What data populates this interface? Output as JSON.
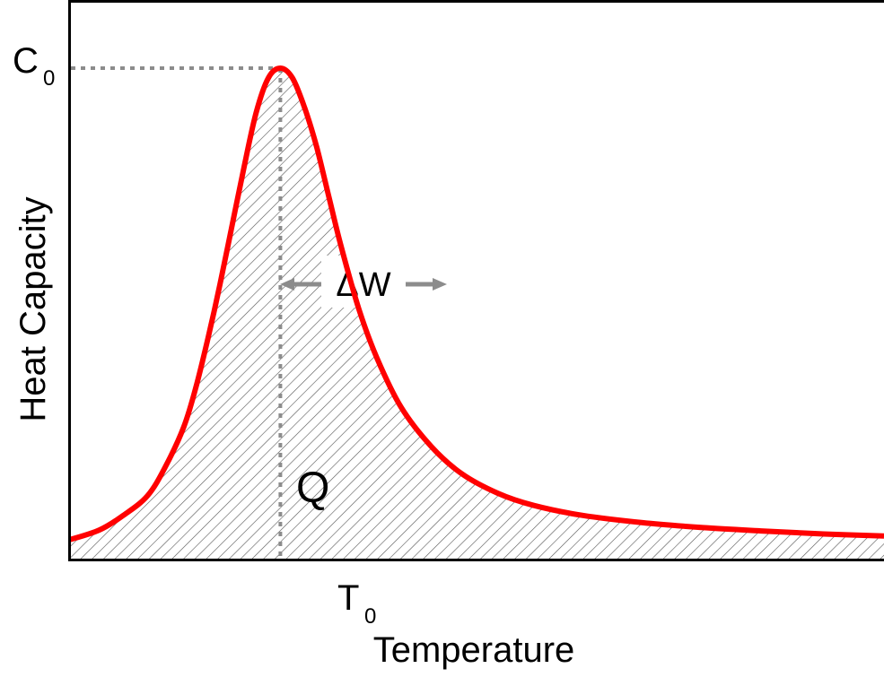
{
  "chart_data": {
    "type": "line",
    "xlabel": "Temperature",
    "ylabel": "Heat Capacity",
    "x_tick_labels": [
      {
        "main": "T",
        "sub": "0",
        "at": 0.0
      }
    ],
    "y_tick_labels": [
      {
        "main": "C",
        "sub": "0",
        "at": 1.0
      }
    ],
    "annotations": {
      "area_label": "Q",
      "width_label": "ΔW"
    },
    "series": [
      {
        "shape": "asymmetric heat-capacity peak with shaded area",
        "x": [
          -3.5,
          -3.0,
          -2.6,
          -2.2,
          -1.9,
          -1.6,
          -1.4,
          -1.2,
          -1.0,
          -0.8,
          -0.6,
          -0.4,
          -0.2,
          0.0,
          0.2,
          0.4,
          0.6,
          0.8,
          1.0,
          1.3,
          1.6,
          2.0,
          2.5,
          3.0,
          3.6,
          4.2,
          5.0,
          6.0,
          7.0,
          8.0,
          9.0,
          10.0
        ],
        "y": [
          0.04,
          0.06,
          0.09,
          0.13,
          0.19,
          0.27,
          0.35,
          0.45,
          0.56,
          0.68,
          0.8,
          0.91,
          0.98,
          1.0,
          0.98,
          0.92,
          0.84,
          0.74,
          0.64,
          0.51,
          0.41,
          0.31,
          0.23,
          0.175,
          0.135,
          0.11,
          0.09,
          0.075,
          0.065,
          0.058,
          0.052,
          0.048
        ]
      }
    ],
    "xlim": [
      -3.5,
      10.0
    ],
    "ylim": [
      0,
      1.0
    ],
    "colors": {
      "curve": "#ff0000",
      "hatch": "#555555",
      "guides": "#8c8c8c",
      "axes": "#000000"
    },
    "grid": false,
    "legend": "none"
  }
}
